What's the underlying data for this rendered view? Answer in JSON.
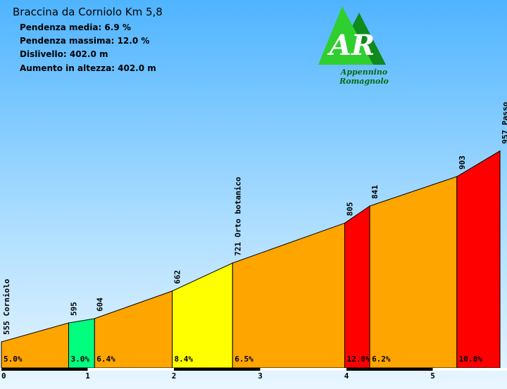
{
  "title": "Braccina da Corniolo Km 5,8",
  "stats": {
    "avg_grade": "Pendenza media: 6.9 %",
    "max_grade": "Pendenza massima: 12.0 %",
    "elevation_gain": "Dislivello: 402.0 m",
    "total_ascent": "Aumento in altezza: 402.0 m"
  },
  "logo": {
    "initials": "AR",
    "caption": "Appennino Romagnolo"
  },
  "colors": {
    "orange": "#ffa500",
    "green": "#00ff7f",
    "yellow": "#ffff00",
    "red": "#ff0000"
  },
  "chart_data": {
    "type": "area",
    "title": "Braccina da Corniolo Km 5,8",
    "x_ticks": [
      "0",
      "1",
      "2",
      "3",
      "4",
      "5"
    ],
    "xlim": [
      0,
      5.8
    ],
    "points": [
      {
        "x": 0.0,
        "y": 555,
        "label": "555 Corniolo"
      },
      {
        "x": 0.78,
        "y": 595,
        "label": "595"
      },
      {
        "x": 1.08,
        "y": 604,
        "label": "604"
      },
      {
        "x": 1.98,
        "y": 662,
        "label": "662"
      },
      {
        "x": 2.68,
        "y": 721,
        "label": "721 Orto botanico"
      },
      {
        "x": 3.98,
        "y": 805,
        "label": "805"
      },
      {
        "x": 4.27,
        "y": 841,
        "label": "841"
      },
      {
        "x": 5.28,
        "y": 903,
        "label": "903"
      },
      {
        "x": 5.78,
        "y": 957,
        "label": "957 Passo"
      }
    ],
    "segments": [
      {
        "grade": "5.0%",
        "color": "orange"
      },
      {
        "grade": "3.0%",
        "color": "green"
      },
      {
        "grade": "6.4%",
        "color": "orange"
      },
      {
        "grade": "8.4%",
        "color": "yellow"
      },
      {
        "grade": "6.5%",
        "color": "orange"
      },
      {
        "grade": "12.0%",
        "color": "red"
      },
      {
        "grade": "6.2%",
        "color": "orange"
      },
      {
        "grade": "10.8%",
        "color": "red"
      }
    ]
  }
}
